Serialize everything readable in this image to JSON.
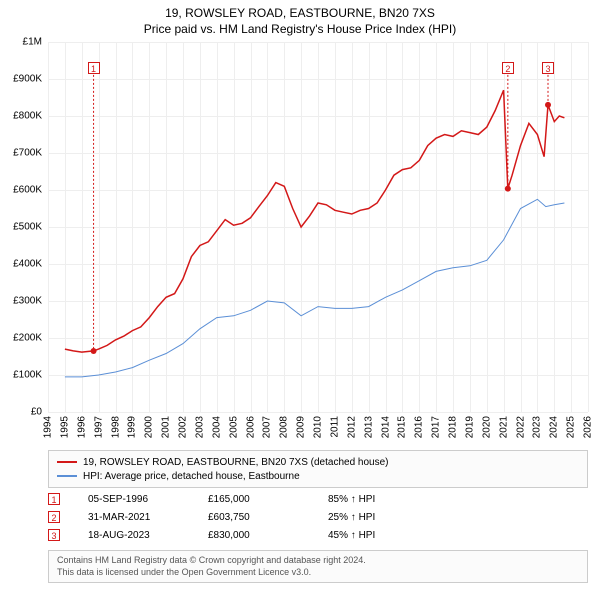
{
  "title": "19, ROWSLEY ROAD, EASTBOURNE, BN20 7XS",
  "subtitle": "Price paid vs. HM Land Registry's House Price Index (HPI)",
  "chart": {
    "type": "line",
    "background_color": "#ffffff",
    "grid_color": "#eeeeee",
    "axis_font_size": 10,
    "title_font_size": 12,
    "xlim": [
      1994,
      2026
    ],
    "ylim": [
      0,
      1000000
    ],
    "ytick_step": 100000,
    "ytick_labels": [
      "£0",
      "£100K",
      "£200K",
      "£300K",
      "£400K",
      "£500K",
      "£600K",
      "£700K",
      "£800K",
      "£900K",
      "£1M"
    ],
    "xticks": [
      1994,
      1995,
      1996,
      1997,
      1998,
      1999,
      2000,
      2001,
      2002,
      2003,
      2004,
      2005,
      2006,
      2007,
      2008,
      2009,
      2010,
      2011,
      2012,
      2013,
      2014,
      2015,
      2016,
      2017,
      2018,
      2019,
      2020,
      2021,
      2022,
      2023,
      2024,
      2025,
      2026
    ],
    "series": [
      {
        "name": "price_paid",
        "label": "19, ROWSLEY ROAD, EASTBOURNE, BN20 7XS (detached house)",
        "color": "#d31818",
        "line_width": 1.5,
        "data": [
          [
            1995.0,
            170000
          ],
          [
            1995.5,
            165000
          ],
          [
            1996.0,
            162000
          ],
          [
            1996.7,
            165000
          ],
          [
            1997.0,
            170000
          ],
          [
            1997.5,
            180000
          ],
          [
            1998.0,
            195000
          ],
          [
            1998.5,
            205000
          ],
          [
            1999.0,
            220000
          ],
          [
            1999.5,
            230000
          ],
          [
            2000.0,
            255000
          ],
          [
            2000.5,
            285000
          ],
          [
            2001.0,
            310000
          ],
          [
            2001.5,
            320000
          ],
          [
            2002.0,
            360000
          ],
          [
            2002.5,
            420000
          ],
          [
            2003.0,
            450000
          ],
          [
            2003.5,
            460000
          ],
          [
            2004.0,
            490000
          ],
          [
            2004.5,
            520000
          ],
          [
            2005.0,
            505000
          ],
          [
            2005.5,
            510000
          ],
          [
            2006.0,
            525000
          ],
          [
            2006.5,
            555000
          ],
          [
            2007.0,
            585000
          ],
          [
            2007.5,
            620000
          ],
          [
            2008.0,
            610000
          ],
          [
            2008.5,
            550000
          ],
          [
            2009.0,
            500000
          ],
          [
            2009.5,
            530000
          ],
          [
            2010.0,
            565000
          ],
          [
            2010.5,
            560000
          ],
          [
            2011.0,
            545000
          ],
          [
            2011.5,
            540000
          ],
          [
            2012.0,
            535000
          ],
          [
            2012.5,
            545000
          ],
          [
            2013.0,
            550000
          ],
          [
            2013.5,
            565000
          ],
          [
            2014.0,
            600000
          ],
          [
            2014.5,
            640000
          ],
          [
            2015.0,
            655000
          ],
          [
            2015.5,
            660000
          ],
          [
            2016.0,
            680000
          ],
          [
            2016.5,
            720000
          ],
          [
            2017.0,
            740000
          ],
          [
            2017.5,
            750000
          ],
          [
            2018.0,
            745000
          ],
          [
            2018.5,
            760000
          ],
          [
            2019.0,
            755000
          ],
          [
            2019.5,
            750000
          ],
          [
            2020.0,
            770000
          ],
          [
            2020.5,
            815000
          ],
          [
            2021.0,
            870000
          ],
          [
            2021.25,
            603750
          ],
          [
            2021.5,
            640000
          ],
          [
            2022.0,
            720000
          ],
          [
            2022.5,
            780000
          ],
          [
            2023.0,
            750000
          ],
          [
            2023.4,
            690000
          ],
          [
            2023.63,
            830000
          ],
          [
            2024.0,
            785000
          ],
          [
            2024.3,
            800000
          ],
          [
            2024.6,
            795000
          ]
        ]
      },
      {
        "name": "hpi",
        "label": "HPI: Average price, detached house, Eastbourne",
        "color": "#5b8fd6",
        "line_width": 1,
        "data": [
          [
            1995.0,
            95000
          ],
          [
            1996.0,
            95000
          ],
          [
            1997.0,
            100000
          ],
          [
            1998.0,
            108000
          ],
          [
            1999.0,
            120000
          ],
          [
            2000.0,
            140000
          ],
          [
            2001.0,
            158000
          ],
          [
            2002.0,
            185000
          ],
          [
            2003.0,
            225000
          ],
          [
            2004.0,
            255000
          ],
          [
            2005.0,
            260000
          ],
          [
            2006.0,
            275000
          ],
          [
            2007.0,
            300000
          ],
          [
            2008.0,
            295000
          ],
          [
            2009.0,
            260000
          ],
          [
            2010.0,
            285000
          ],
          [
            2011.0,
            280000
          ],
          [
            2012.0,
            280000
          ],
          [
            2013.0,
            285000
          ],
          [
            2014.0,
            310000
          ],
          [
            2015.0,
            330000
          ],
          [
            2016.0,
            355000
          ],
          [
            2017.0,
            380000
          ],
          [
            2018.0,
            390000
          ],
          [
            2019.0,
            395000
          ],
          [
            2020.0,
            410000
          ],
          [
            2021.0,
            465000
          ],
          [
            2022.0,
            550000
          ],
          [
            2023.0,
            575000
          ],
          [
            2023.5,
            555000
          ],
          [
            2024.0,
            560000
          ],
          [
            2024.6,
            565000
          ]
        ]
      }
    ],
    "markers": [
      {
        "n": "1",
        "x": 1996.7,
        "y": 165000,
        "box_y": 930000
      },
      {
        "n": "2",
        "x": 2021.25,
        "y": 603750,
        "box_y": 930000
      },
      {
        "n": "3",
        "x": 2023.63,
        "y": 830000,
        "box_y": 930000
      }
    ]
  },
  "legend": {
    "border_color": "#cccccc",
    "bg_color": "#fbfbfb",
    "font_size": 10,
    "items": [
      {
        "color": "#d31818",
        "label": "19, ROWSLEY ROAD, EASTBOURNE, BN20 7XS (detached house)"
      },
      {
        "color": "#5b8fd6",
        "label": "HPI: Average price, detached house, Eastbourne"
      }
    ]
  },
  "events": [
    {
      "n": "1",
      "date": "05-SEP-1996",
      "price": "£165,000",
      "pct": "85% ↑ HPI"
    },
    {
      "n": "2",
      "date": "31-MAR-2021",
      "price": "£603,750",
      "pct": "25% ↑ HPI"
    },
    {
      "n": "3",
      "date": "18-AUG-2023",
      "price": "£830,000",
      "pct": "45% ↑ HPI"
    }
  ],
  "footer": {
    "line1": "Contains HM Land Registry data © Crown copyright and database right 2024.",
    "line2": "This data is licensed under the Open Government Licence v3.0.",
    "color": "#555555",
    "border_color": "#cccccc",
    "bg_color": "#fbfbfb",
    "font_size": 9
  }
}
